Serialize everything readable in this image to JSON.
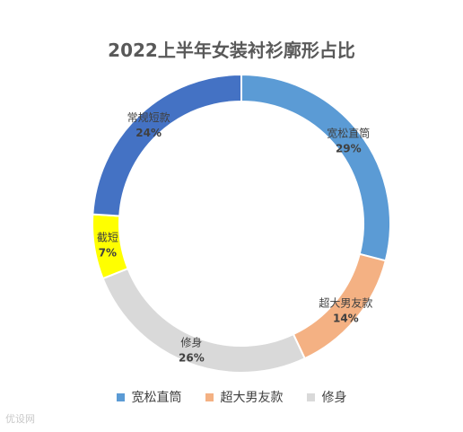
{
  "chart_data": {
    "type": "pie",
    "variant": "doughnut",
    "title": "2022上半年女装衬衫廓形占比",
    "categories": [
      "宽松直筒",
      "超大男友款",
      "修身",
      "截短",
      "常规短款"
    ],
    "values": [
      29,
      14,
      26,
      7,
      24
    ],
    "value_labels": [
      "29%",
      "14%",
      "26%",
      "7%",
      "24%"
    ],
    "colors": [
      "#5B9BD5",
      "#F4B183",
      "#D9D9D9",
      "#FFFF00",
      "#4472C4"
    ],
    "legend": {
      "placement": "bottom",
      "entries": [
        "宽松直筒",
        "超大男友款",
        "修身"
      ],
      "colors": [
        "#5B9BD5",
        "#F4B183",
        "#D9D9D9"
      ]
    }
  },
  "watermark": "优设网"
}
